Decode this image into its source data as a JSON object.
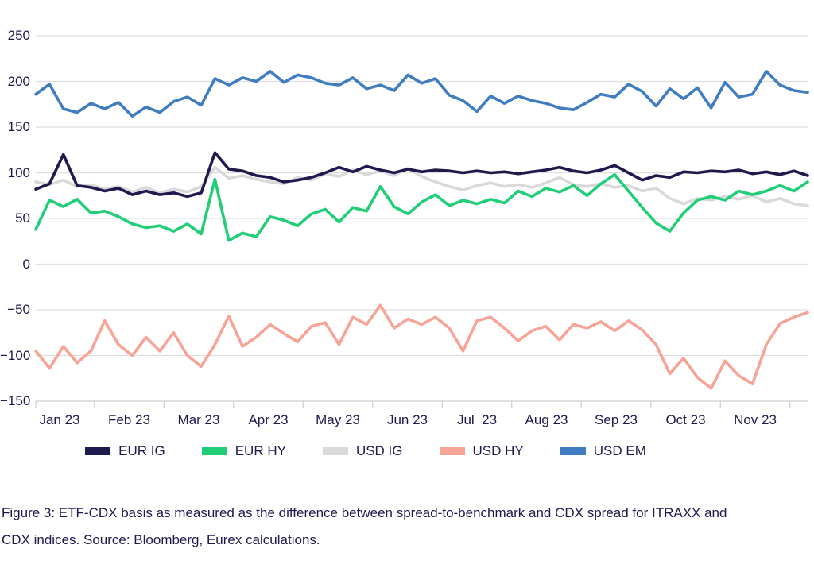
{
  "figure": {
    "caption": "Figure 3: ETF-CDX basis as measured as the difference between spread-to-benchmark and CDX spread for ITRAXX and CDX indices. Source: Bloomberg, Eurex calculations."
  },
  "colors": {
    "text": "#1e1a4e",
    "gridline": "#dfdfdf",
    "axis": "#cfcfcf",
    "background": "#ffffff"
  },
  "chart_data": {
    "type": "line",
    "title": "",
    "xlabel": "",
    "ylabel": "",
    "x_unit": "months since Jan 2023 (daily spread-to-benchmark minus CDX spread, bp)",
    "grid": "horizontal",
    "legend_position": "bottom",
    "y_axis": {
      "min": -150,
      "max": 250,
      "ticks": [
        {
          "label": "250",
          "value": 250
        },
        {
          "label": "200",
          "value": 200
        },
        {
          "label": "150",
          "value": 150
        },
        {
          "label": "100",
          "value": 100
        },
        {
          "label": "50",
          "value": 50
        },
        {
          "label": "0",
          "value": 0
        },
        {
          "label": "−50",
          "value": -50
        },
        {
          "label": "−100",
          "value": -100
        },
        {
          "label": "−150",
          "value": -150
        }
      ]
    },
    "x_axis": {
      "labels": [
        "Jan 23",
        "Feb 23",
        "Mar 23",
        "Apr 23",
        "May 23",
        "Jun 23",
        "Jul  23",
        "Aug 23",
        "Sep 23",
        "Oct 23",
        "Nov 23"
      ]
    },
    "x": [
      0,
      0.2,
      0.4,
      0.6,
      0.8,
      1,
      1.2,
      1.4,
      1.6,
      1.8,
      2,
      2.2,
      2.4,
      2.6,
      2.8,
      3,
      3.2,
      3.4,
      3.6,
      3.8,
      4,
      4.2,
      4.4,
      4.6,
      4.8,
      5,
      5.2,
      5.4,
      5.6,
      5.8,
      6,
      6.2,
      6.4,
      6.6,
      6.8,
      7,
      7.2,
      7.4,
      7.6,
      7.8,
      8,
      8.2,
      8.4,
      8.6,
      8.8,
      9,
      9.2,
      9.4,
      9.6,
      9.8,
      10,
      10.2,
      10.4,
      10.6,
      10.8,
      11,
      11.2
    ],
    "series": [
      {
        "name": "EUR IG",
        "color": "#1e1a4e",
        "values": [
          82,
          88,
          120,
          86,
          84,
          80,
          83,
          76,
          80,
          76,
          78,
          74,
          78,
          122,
          104,
          102,
          97,
          95,
          90,
          92,
          95,
          100,
          106,
          101,
          107,
          103,
          100,
          104,
          101,
          103,
          102,
          100,
          102,
          100,
          101,
          99,
          101,
          103,
          106,
          102,
          100,
          103,
          108,
          100,
          92,
          97,
          95,
          101,
          100,
          102,
          101,
          103,
          99,
          101,
          98,
          102,
          97
        ]
      },
      {
        "name": "EUR HY",
        "color": "#21ce78",
        "values": [
          38,
          70,
          63,
          71,
          56,
          58,
          52,
          44,
          40,
          42,
          36,
          44,
          33,
          93,
          26,
          34,
          30,
          52,
          48,
          42,
          55,
          60,
          46,
          62,
          58,
          85,
          63,
          55,
          68,
          76,
          64,
          70,
          66,
          71,
          67,
          80,
          74,
          83,
          79,
          86,
          75,
          88,
          98,
          80,
          62,
          45,
          36,
          56,
          70,
          74,
          70,
          80,
          76,
          80,
          86,
          80,
          90
        ]
      },
      {
        "name": "USD IG",
        "color": "#d9d9d9",
        "values": [
          90,
          87,
          92,
          85,
          87,
          82,
          85,
          79,
          84,
          78,
          82,
          79,
          85,
          106,
          94,
          97,
          93,
          90,
          88,
          95,
          92,
          99,
          96,
          103,
          98,
          102,
          97,
          105,
          96,
          90,
          85,
          81,
          86,
          89,
          85,
          87,
          84,
          89,
          95,
          87,
          85,
          88,
          84,
          86,
          80,
          83,
          72,
          66,
          72,
          70,
          74,
          71,
          75,
          68,
          72,
          66,
          64
        ]
      },
      {
        "name": "USD HY",
        "color": "#f7a396",
        "values": [
          -95,
          -114,
          -90,
          -108,
          -95,
          -62,
          -88,
          -100,
          -80,
          -95,
          -75,
          -100,
          -112,
          -88,
          -57,
          -90,
          -80,
          -66,
          -76,
          -85,
          -68,
          -64,
          -88,
          -58,
          -66,
          -45,
          -70,
          -60,
          -66,
          -58,
          -70,
          -95,
          -62,
          -58,
          -70,
          -84,
          -73,
          -68,
          -83,
          -66,
          -70,
          -63,
          -73,
          -62,
          -72,
          -88,
          -120,
          -103,
          -124,
          -136,
          -106,
          -122,
          -131,
          -88,
          -65,
          -58,
          -53
        ]
      },
      {
        "name": "USD EM",
        "color": "#3f7dc0",
        "values": [
          186,
          197,
          170,
          166,
          176,
          170,
          177,
          162,
          172,
          166,
          178,
          183,
          174,
          203,
          196,
          204,
          200,
          211,
          199,
          207,
          204,
          198,
          196,
          204,
          192,
          196,
          190,
          207,
          198,
          203,
          185,
          179,
          167,
          184,
          176,
          184,
          179,
          176,
          171,
          169,
          177,
          186,
          183,
          197,
          189,
          173,
          192,
          181,
          193,
          171,
          199,
          183,
          186,
          211,
          196,
          190,
          188
        ]
      }
    ],
    "draw_order": [
      "USD IG",
      "EUR IG",
      "EUR HY",
      "USD HY",
      "USD EM"
    ]
  }
}
